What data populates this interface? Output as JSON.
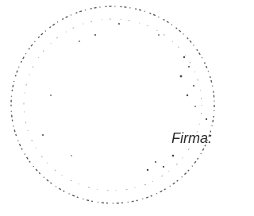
{
  "label": "Firma:"
}
